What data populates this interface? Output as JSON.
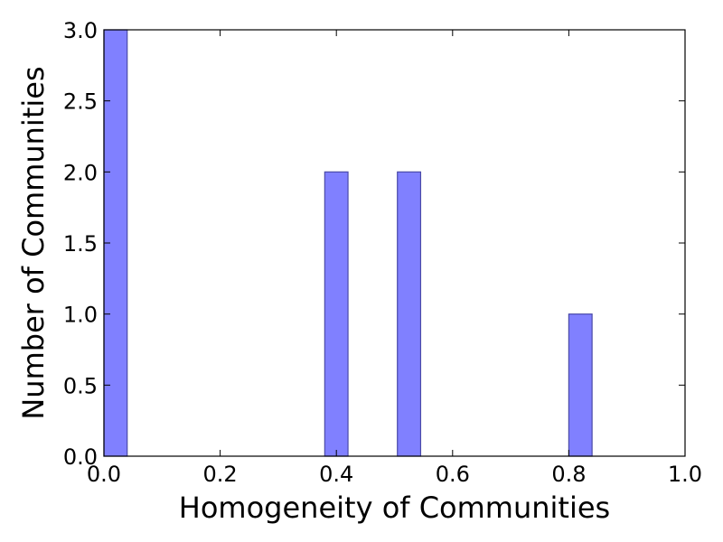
{
  "chart_data": {
    "type": "bar",
    "title": "",
    "xlabel": "Homogeneity of Communities",
    "ylabel": "Number of Communities",
    "xlim": [
      0.0,
      1.0
    ],
    "ylim": [
      0.0,
      3.0
    ],
    "bar_width": 0.04,
    "bars": [
      {
        "x": 0.02,
        "value": 3
      },
      {
        "x": 0.4,
        "value": 2
      },
      {
        "x": 0.525,
        "value": 2
      },
      {
        "x": 0.82,
        "value": 1
      }
    ],
    "x_ticks": [
      0.0,
      0.2,
      0.4,
      0.6,
      0.8,
      1.0
    ],
    "x_tick_labels": [
      "0.0",
      "0.2",
      "0.4",
      "0.6",
      "0.8",
      "1.0"
    ],
    "y_ticks": [
      0.0,
      0.5,
      1.0,
      1.5,
      2.0,
      2.5,
      3.0
    ],
    "y_tick_labels": [
      "0.0",
      "0.5",
      "1.0",
      "1.5",
      "2.0",
      "2.5",
      "3.0"
    ],
    "grid": false,
    "colors": {
      "bar_fill": "#8080ff",
      "bar_stroke": "#4a4aa8",
      "axis": "#000000"
    }
  }
}
